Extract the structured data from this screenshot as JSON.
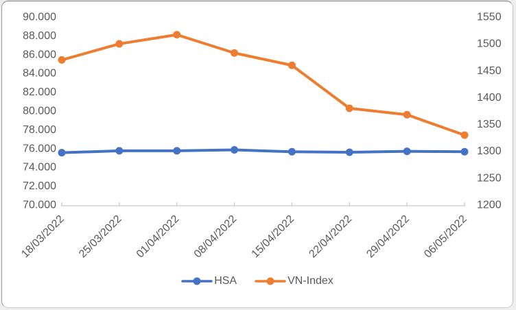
{
  "chart_data": {
    "type": "line",
    "title": "",
    "categories": [
      "18/03/2022",
      "25/03/2022",
      "01/04/2022",
      "08/04/2022",
      "15/04/2022",
      "22/04/2022",
      "29/04/2022",
      "06/05/2022"
    ],
    "series": [
      {
        "name": "HSA",
        "axis": "left",
        "color": "#4472C4",
        "values": [
          75500,
          75700,
          75700,
          75800,
          75600,
          75550,
          75650,
          75600
        ]
      },
      {
        "name": "VN-Index",
        "axis": "right",
        "color": "#ED7D31",
        "values": [
          1469,
          1499,
          1516,
          1482,
          1459,
          1379,
          1367,
          1329
        ]
      }
    ],
    "left_axis": {
      "min": 70000,
      "max": 90000,
      "step": 2000,
      "tick_labels": [
        "90.000",
        "88.000",
        "86.000",
        "84.000",
        "82.000",
        "80.000",
        "78.000",
        "76.000",
        "74.000",
        "72.000",
        "70.000"
      ]
    },
    "right_axis": {
      "min": 1200,
      "max": 1550,
      "step": 50,
      "tick_labels": [
        "1550",
        "1500",
        "1450",
        "1400",
        "1350",
        "1300",
        "1250",
        "1200"
      ]
    },
    "x_axis": {
      "label_rotation_deg": -45
    },
    "legend_position": "bottom",
    "grid": false
  },
  "colors": {
    "axis_line": "#c9c9c9",
    "tick_text": "#595959",
    "background": "#ffffff"
  }
}
